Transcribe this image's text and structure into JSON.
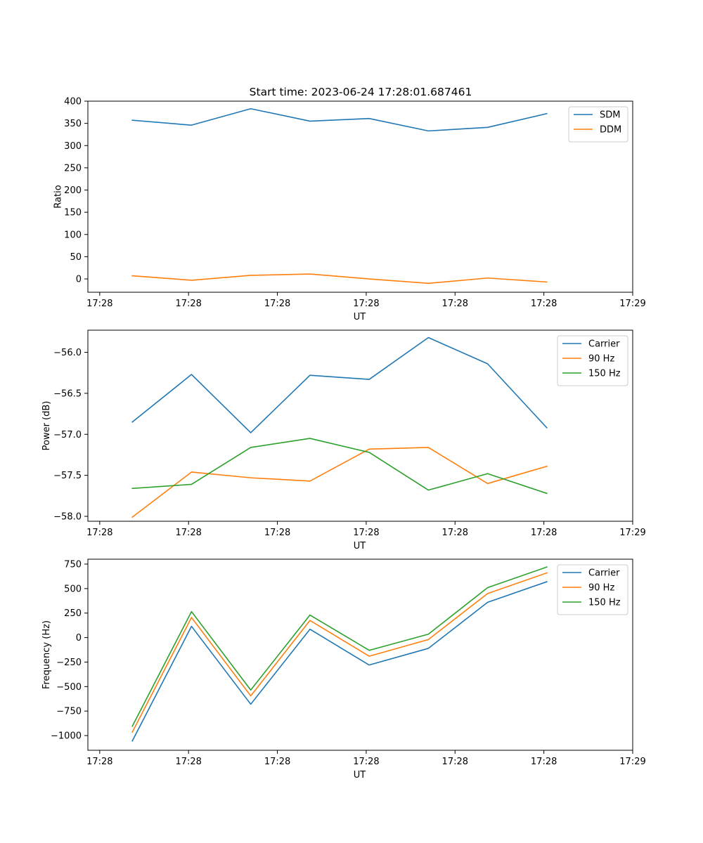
{
  "figure": {
    "title": "Start time: 2023-06-24 17:28:01.687461"
  },
  "colors": {
    "blue": "#1f77b4",
    "orange": "#ff7f0e",
    "green": "#2ca02c"
  },
  "chart_data": [
    {
      "type": "line",
      "title": "Start time: 2023-06-24 17:28:01.687461",
      "xlabel": "UT",
      "ylabel": "Ratio",
      "x": [
        1,
        2,
        3,
        4,
        5,
        6,
        7,
        8
      ],
      "x_tick_values": [
        0.45,
        1.95,
        3.45,
        4.95,
        6.45,
        7.95,
        9.45
      ],
      "x_tick_labels": [
        "17:28",
        "17:28",
        "17:28",
        "17:28",
        "17:28",
        "17:28",
        "17:29"
      ],
      "xlim": [
        0.25,
        9.45
      ],
      "ylim": [
        -30,
        400
      ],
      "y_ticks": [
        0,
        50,
        100,
        150,
        200,
        250,
        300,
        350,
        400
      ],
      "y_tick_labels": [
        "0",
        "50",
        "100",
        "150",
        "200",
        "250",
        "300",
        "350",
        "400"
      ],
      "legend": "top-right",
      "series": [
        {
          "name": "SDM",
          "color": "#1f77b4",
          "values": [
            357,
            346,
            383,
            355,
            361,
            333,
            341,
            372
          ]
        },
        {
          "name": "DDM",
          "color": "#ff7f0e",
          "values": [
            7,
            -3,
            8,
            11,
            0,
            -10,
            2,
            -7
          ]
        }
      ]
    },
    {
      "type": "line",
      "title": "",
      "xlabel": "UT",
      "ylabel": "Power (dB)",
      "x": [
        1,
        2,
        3,
        4,
        5,
        6,
        7,
        8
      ],
      "x_tick_values": [
        0.45,
        1.95,
        3.45,
        4.95,
        6.45,
        7.95,
        9.45
      ],
      "x_tick_labels": [
        "17:28",
        "17:28",
        "17:28",
        "17:28",
        "17:28",
        "17:28",
        "17:29"
      ],
      "xlim": [
        0.25,
        9.45
      ],
      "ylim": [
        -58.06,
        -55.73
      ],
      "y_ticks": [
        -58.0,
        -57.5,
        -57.0,
        -56.5,
        -56.0
      ],
      "y_tick_labels": [
        "−58.0",
        "−57.5",
        "−57.0",
        "−56.5",
        "−56.0"
      ],
      "legend": "top-right",
      "series": [
        {
          "name": "Carrier",
          "color": "#1f77b4",
          "values": [
            -56.85,
            -56.27,
            -56.98,
            -56.28,
            -56.33,
            -55.82,
            -56.14,
            -56.92
          ]
        },
        {
          "name": "90 Hz",
          "color": "#ff7f0e",
          "values": [
            -58.01,
            -57.46,
            -57.53,
            -57.57,
            -57.18,
            -57.16,
            -57.6,
            -57.39
          ]
        },
        {
          "name": "150 Hz",
          "color": "#2ca02c",
          "values": [
            -57.66,
            -57.61,
            -57.16,
            -57.05,
            -57.22,
            -57.68,
            -57.48,
            -57.72
          ]
        }
      ]
    },
    {
      "type": "line",
      "title": "",
      "xlabel": "UT",
      "ylabel": "Frequency (Hz)",
      "x": [
        1,
        2,
        3,
        4,
        5,
        6,
        7,
        8
      ],
      "x_tick_values": [
        0.45,
        1.95,
        3.45,
        4.95,
        6.45,
        7.95,
        9.45
      ],
      "x_tick_labels": [
        "17:28",
        "17:28",
        "17:28",
        "17:28",
        "17:28",
        "17:28",
        "17:29"
      ],
      "xlim": [
        0.25,
        9.45
      ],
      "ylim": [
        -1150,
        800
      ],
      "y_ticks": [
        -1000,
        -750,
        -500,
        -250,
        0,
        250,
        500,
        750
      ],
      "y_tick_labels": [
        "−1000",
        "−750",
        "−500",
        "−250",
        "0",
        "250",
        "500",
        "750"
      ],
      "legend": "top-right",
      "series": [
        {
          "name": "Carrier",
          "color": "#1f77b4",
          "values": [
            -1055,
            115,
            -680,
            85,
            -280,
            -110,
            360,
            570
          ]
        },
        {
          "name": "90 Hz",
          "color": "#ff7f0e",
          "values": [
            -965,
            205,
            -595,
            175,
            -190,
            -20,
            450,
            660
          ]
        },
        {
          "name": "150 Hz",
          "color": "#2ca02c",
          "values": [
            -905,
            265,
            -535,
            230,
            -130,
            35,
            510,
            720
          ]
        }
      ]
    }
  ]
}
